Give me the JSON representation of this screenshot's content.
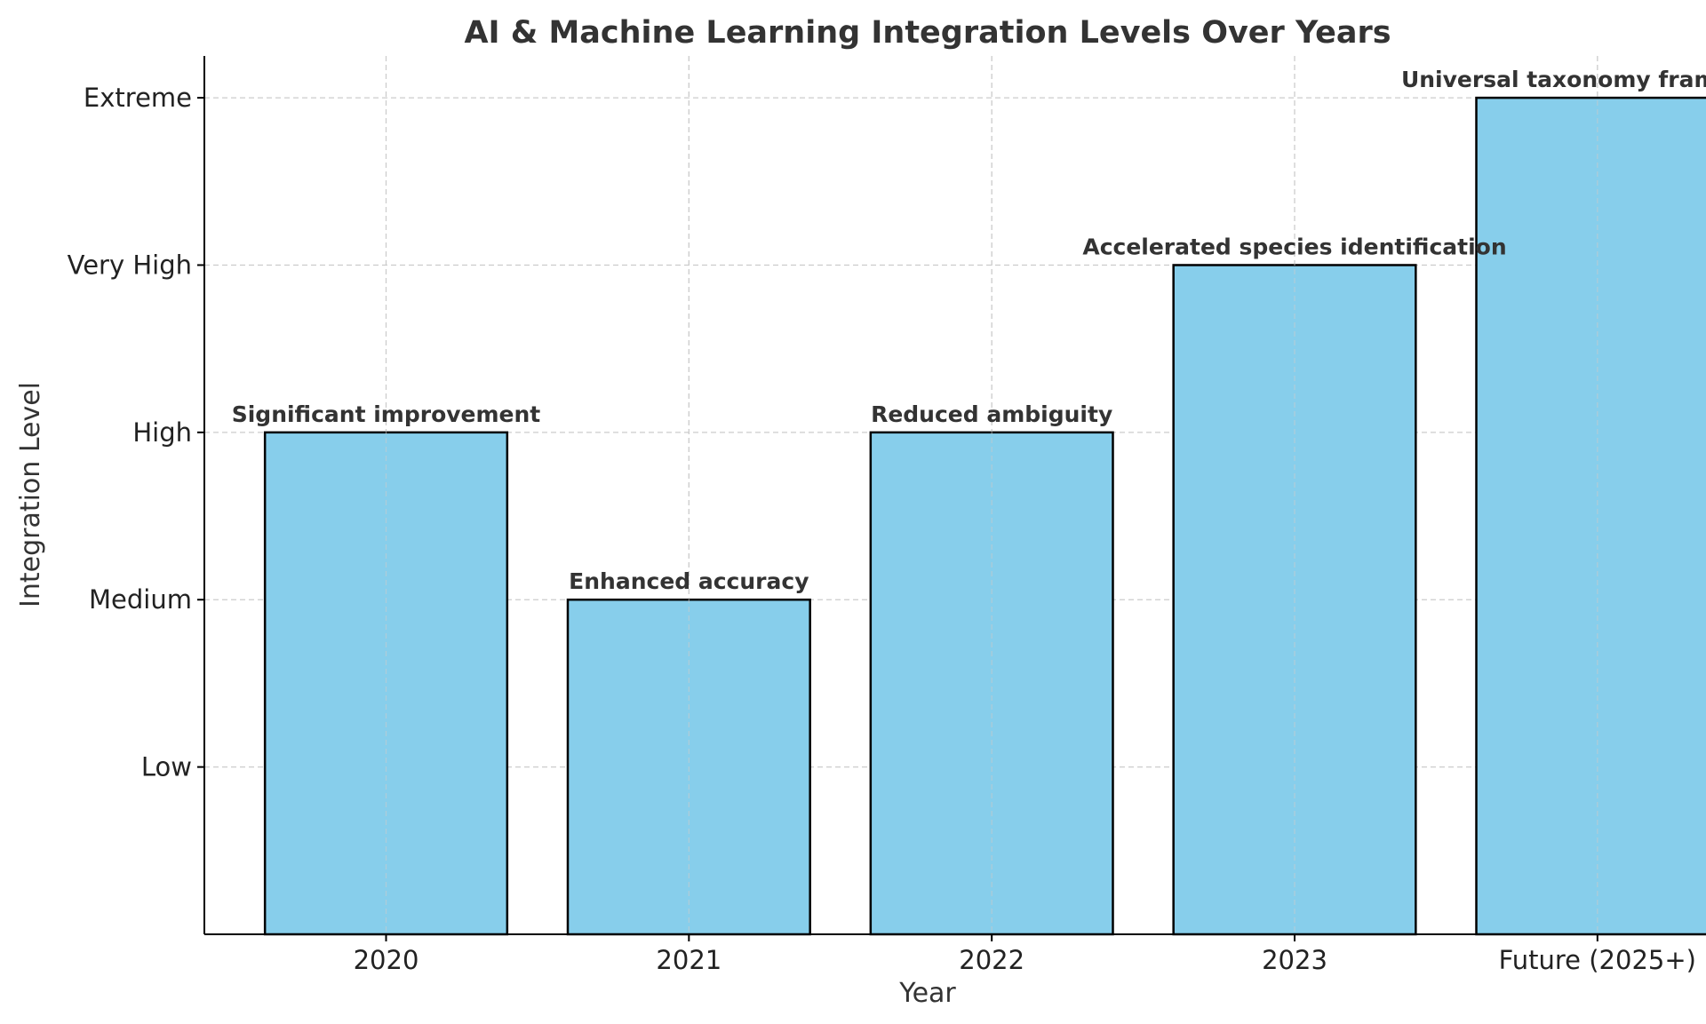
{
  "chart_data": {
    "type": "bar",
    "title": "AI & Machine Learning Integration Levels Over Years",
    "xlabel": "Year",
    "ylabel": "Integration Level",
    "categories": [
      "2020",
      "2021",
      "2022",
      "2023",
      "Future (2025+)"
    ],
    "values": [
      3,
      2,
      3,
      4,
      5
    ],
    "annotations": [
      "Significant improvement",
      "Enhanced accuracy",
      "Reduced ambiguity",
      "Accelerated species identification",
      "Universal taxonomy framework"
    ],
    "y_ticks": [
      {
        "value": 1,
        "label": "Low"
      },
      {
        "value": 2,
        "label": "Medium"
      },
      {
        "value": 3,
        "label": "High"
      },
      {
        "value": 4,
        "label": "Very High"
      },
      {
        "value": 5,
        "label": "Extreme"
      }
    ],
    "ylim": [
      0,
      5.25
    ],
    "grid": true,
    "colors": {
      "bar": "#87ceeb",
      "edge": "#000000"
    }
  }
}
